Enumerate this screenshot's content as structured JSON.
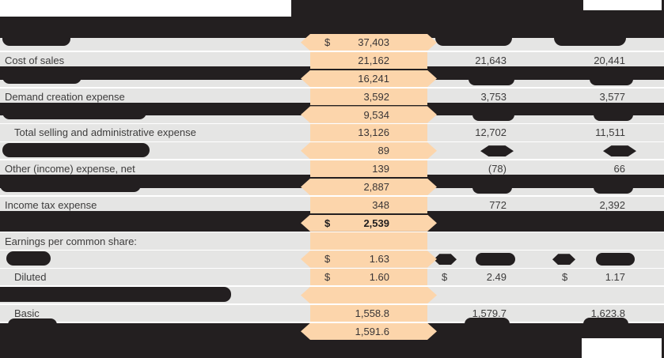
{
  "document": {
    "type": "income-statement-table",
    "note": "scanned financial table with black redaction bars; fiscal-year column highlighted in orange"
  },
  "colors": {
    "highlight": "#fcd5ab",
    "rowbg": "#e5e5e4",
    "blk": "#231f20",
    "pagebg": "#ffffff",
    "text": "#3d3c3c",
    "textbold": "#1f1d1e"
  },
  "rows": [
    {
      "label": "",
      "label_redacted": true,
      "hl_cur": "$",
      "hl_val": "37,403",
      "c2_cur": "",
      "c2_val": "",
      "c3_cur": "",
      "c3_val": "",
      "c2_redacted": true,
      "c3_redacted": true
    },
    {
      "label": "Cost of sales",
      "hl_cur": "",
      "hl_val": "21,162",
      "c2_cur": "",
      "c2_val": "21,643",
      "c3_cur": "",
      "c3_val": "20,441"
    },
    {
      "label": "",
      "label_redacted": true,
      "hl_cur": "",
      "hl_val": "16,241",
      "c2_cur": "",
      "c2_val": "",
      "c3_cur": "",
      "c3_val": "",
      "c2_redacted": true,
      "c3_redacted": true
    },
    {
      "label": "Demand creation expense",
      "hl_cur": "",
      "hl_val": "3,592",
      "c2_cur": "",
      "c2_val": "3,753",
      "c3_cur": "",
      "c3_val": "3,577"
    },
    {
      "label": "",
      "label_redacted": true,
      "hl_cur": "",
      "hl_val": "9,534",
      "c2_cur": "",
      "c2_val": "",
      "c3_cur": "",
      "c3_val": "",
      "c2_redacted": true,
      "c3_redacted": true
    },
    {
      "label": "Total selling and administrative expense",
      "indent": true,
      "hl_cur": "",
      "hl_val": "13,126",
      "c2_cur": "",
      "c2_val": "12,702",
      "c3_cur": "",
      "c3_val": "11,511"
    },
    {
      "label": "",
      "label_redacted": true,
      "hl_cur": "",
      "hl_val": "89",
      "c2_cur": "",
      "c2_val": "",
      "c3_cur": "",
      "c3_val": "",
      "c2_redacted": true,
      "c3_redacted": true
    },
    {
      "label": "Other (income) expense, net",
      "hl_cur": "",
      "hl_val": "139",
      "c2_cur": "",
      "c2_val": "(78)",
      "c3_cur": "",
      "c3_val": "66"
    },
    {
      "label": "",
      "label_redacted": true,
      "hl_cur": "",
      "hl_val": "2,887",
      "c2_cur": "",
      "c2_val": "",
      "c3_cur": "",
      "c3_val": "",
      "c2_redacted": true,
      "c3_redacted": true
    },
    {
      "label": "Income tax expense",
      "hl_cur": "",
      "hl_val": "348",
      "c2_cur": "",
      "c2_val": "772",
      "c3_cur": "",
      "c3_val": "2,392"
    },
    {
      "label": "",
      "row_redacted": true,
      "hl_cur": "$",
      "hl_val": "2,539",
      "bold": true,
      "c2_cur": "",
      "c2_val": "",
      "c3_cur": "",
      "c3_val": ""
    },
    {
      "label": "Earnings per common share:",
      "hl_cur": "",
      "hl_val": "",
      "c2_cur": "",
      "c2_val": "",
      "c3_cur": "",
      "c3_val": ""
    },
    {
      "label": "",
      "label_redacted": true,
      "hl_cur": "$",
      "hl_val": "1.63",
      "c2_cur": "",
      "c2_val": "",
      "c3_cur": "",
      "c3_val": "",
      "c2_redacted": true,
      "c3_redacted": true
    },
    {
      "label": "Diluted",
      "indent": true,
      "hl_cur": "$",
      "hl_val": "1.60",
      "c2_cur": "$",
      "c2_val": "2.49",
      "c3_cur": "$",
      "c3_val": "1.17"
    },
    {
      "label": "",
      "label_redacted": true,
      "hl_cur": "",
      "hl_val": "",
      "c2_cur": "",
      "c2_val": "",
      "c3_cur": "",
      "c3_val": ""
    },
    {
      "label": "Basic",
      "indent": true,
      "hl_cur": "",
      "hl_val": "1,558.8",
      "c2_cur": "",
      "c2_val": "1,579.7",
      "c3_cur": "",
      "c3_val": "1,623.8"
    },
    {
      "label": "",
      "label_redacted": true,
      "hl_cur": "",
      "hl_val": "1,591.6",
      "c2_cur": "",
      "c2_val": "",
      "c3_cur": "",
      "c3_val": "",
      "c2_redacted": true,
      "c3_redacted": true
    }
  ]
}
